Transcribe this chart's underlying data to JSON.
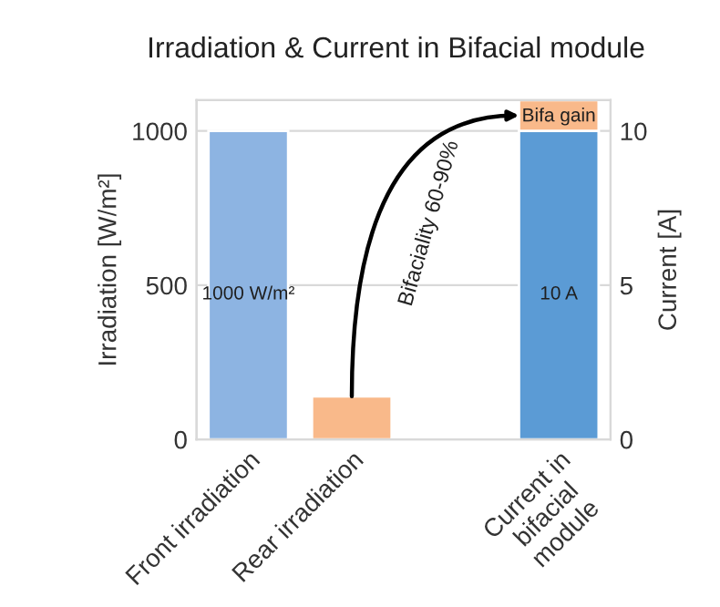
{
  "chart_data": {
    "type": "bar",
    "title": "Irradiation & Current in Bifacial module",
    "categories": [
      "Front irradiation",
      "Rear irradiation",
      null,
      "Current in bifacial module"
    ],
    "series": [
      {
        "colors": [
          "#8db4e2",
          "#f9b98a",
          null,
          null
        ],
        "values": [
          1000,
          140,
          null,
          null
        ],
        "value_labels": [
          "1000 W/m²",
          null,
          null,
          null
        ]
      },
      {
        "color": "#5b9bd5",
        "axis": "y2",
        "values": [
          null,
          null,
          null,
          10
        ],
        "value_labels": [
          null,
          null,
          null,
          "10 A"
        ]
      },
      {
        "color": "#f9b98a",
        "axis": "y2",
        "values": [
          null,
          null,
          null,
          1.0
        ],
        "value_labels": [
          null,
          null,
          null,
          "Bifa gain"
        ]
      }
    ],
    "stacked": true,
    "ylabel": "Irradiation [W/m²]",
    "y2label": "Current [A]",
    "ylim": [
      0,
      1100
    ],
    "yticks": [
      0,
      500,
      1000
    ],
    "y2lim": [
      0,
      11
    ],
    "y2ticks": [
      0,
      5,
      10
    ],
    "grid": "y",
    "annotations": [
      "Bifaciality 60-90%"
    ]
  }
}
